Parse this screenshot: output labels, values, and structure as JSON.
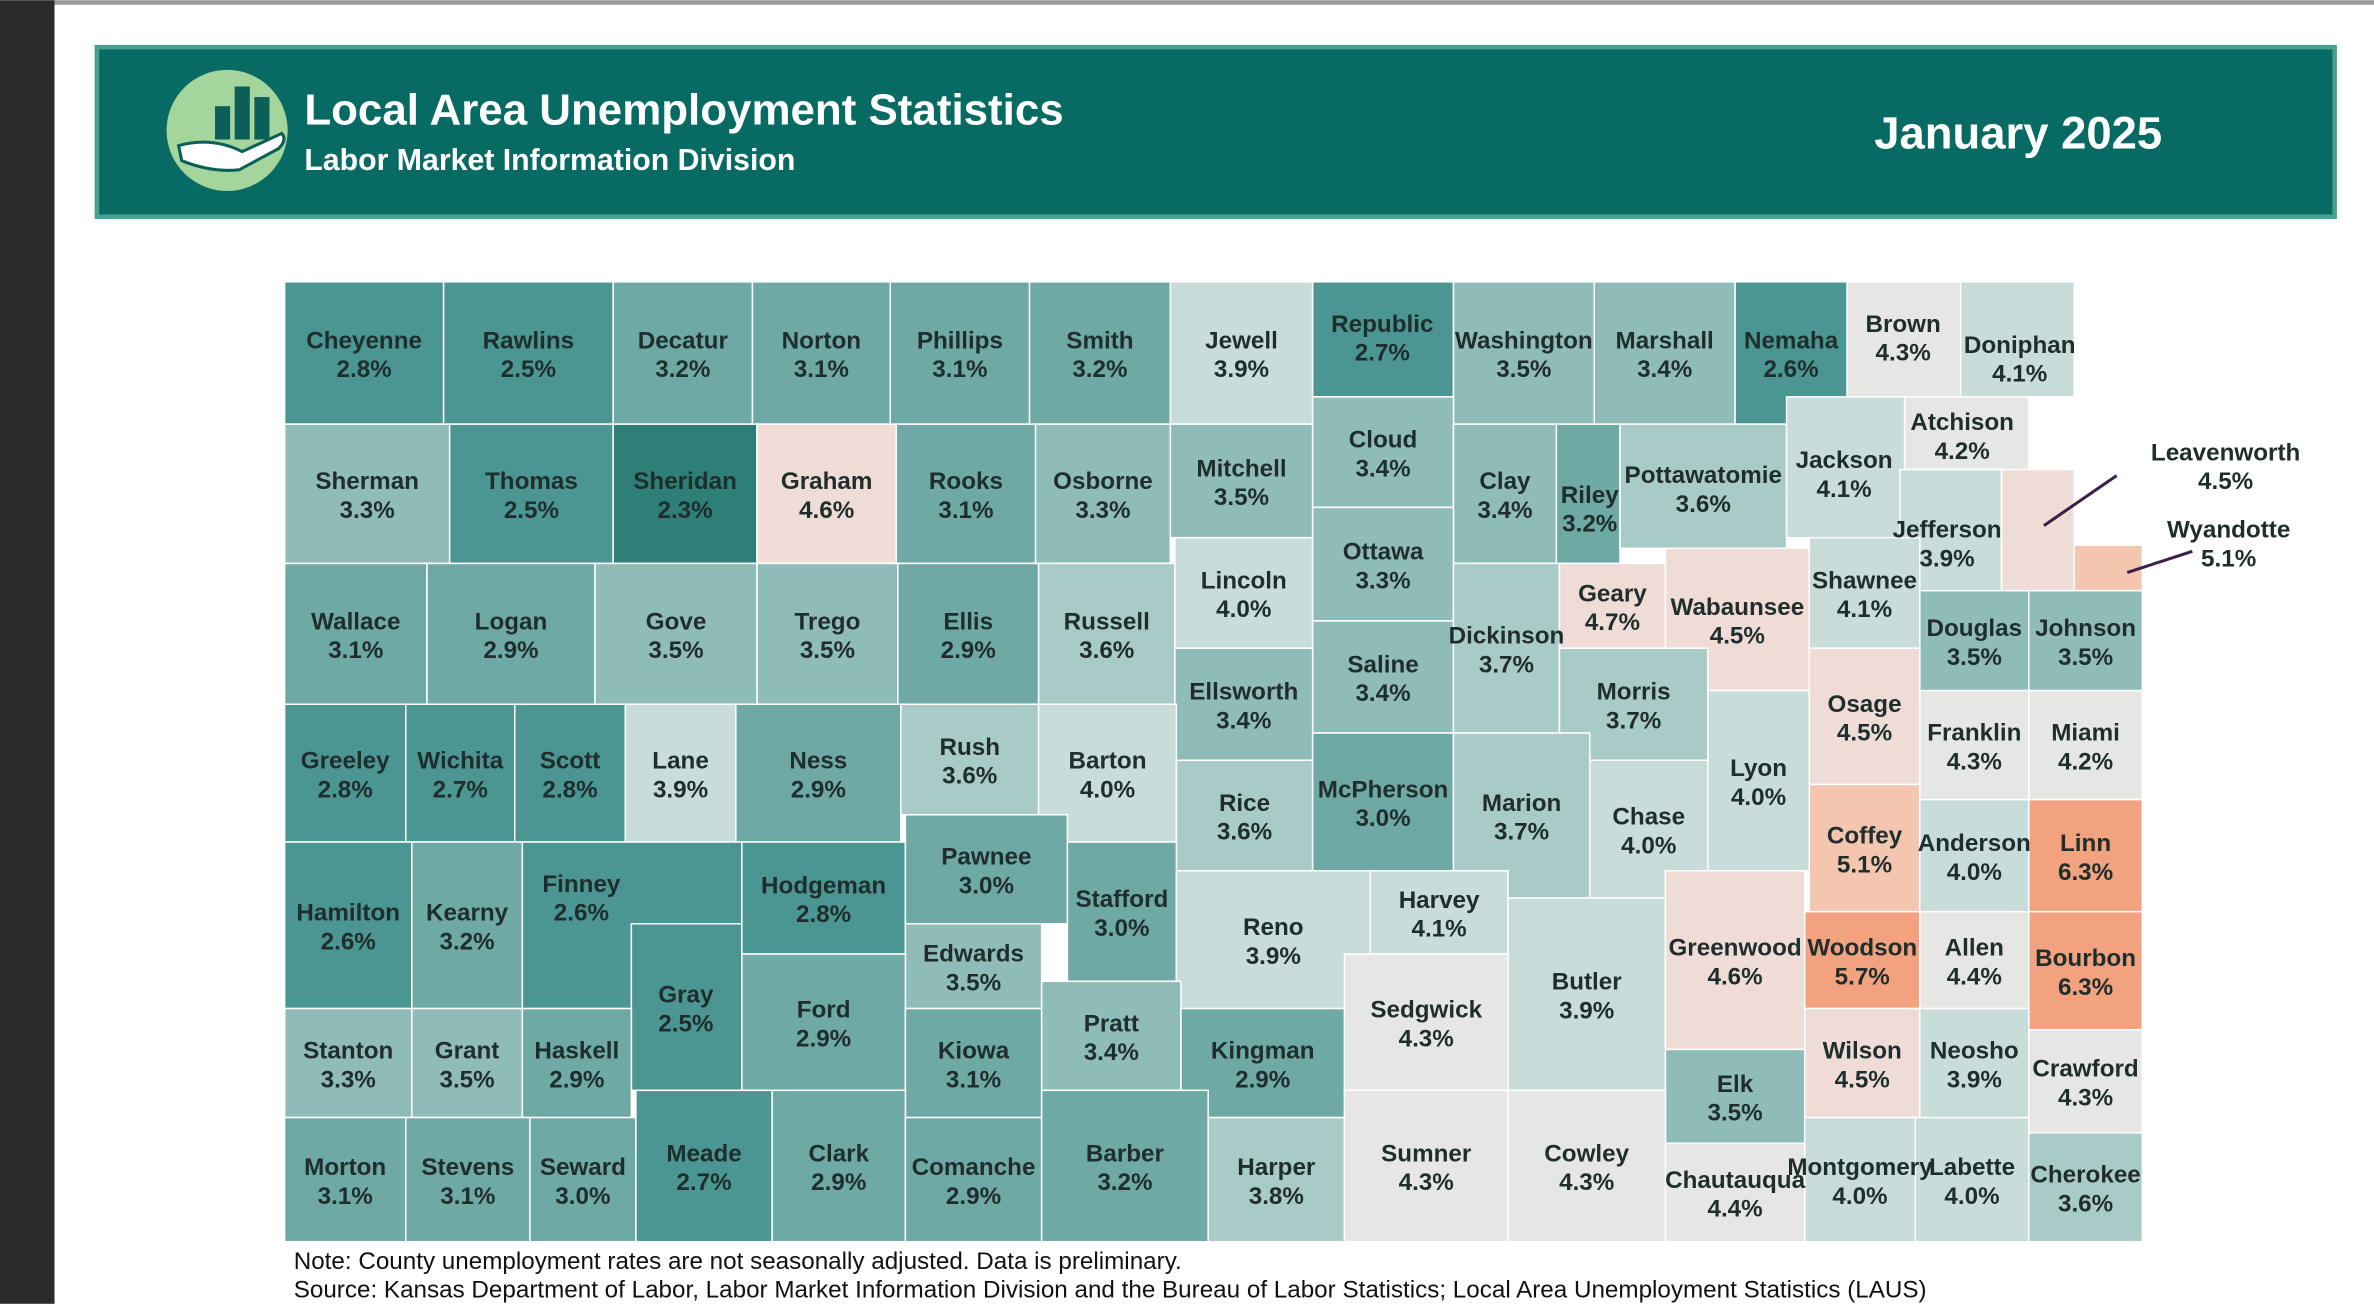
{
  "header": {
    "title": "Local Area Unemployment Statistics",
    "subtitle": "Labor Market Information Division",
    "date": "January 2025"
  },
  "counties": [
    {
      "name": "Cheyenne",
      "value": 2.8,
      "label": "2.8%"
    },
    {
      "name": "Rawlins",
      "value": 2.5,
      "label": "2.5%"
    },
    {
      "name": "Decatur",
      "value": 3.2,
      "label": "3.2%"
    },
    {
      "name": "Norton",
      "value": 3.1,
      "label": "3.1%"
    },
    {
      "name": "Phillips",
      "value": 3.1,
      "label": "3.1%"
    },
    {
      "name": "Smith",
      "value": 3.2,
      "label": "3.2%"
    },
    {
      "name": "Jewell",
      "value": 3.9,
      "label": "3.9%"
    },
    {
      "name": "Republic",
      "value": 2.7,
      "label": "2.7%"
    },
    {
      "name": "Washington",
      "value": 3.5,
      "label": "3.5%"
    },
    {
      "name": "Marshall",
      "value": 3.4,
      "label": "3.4%"
    },
    {
      "name": "Nemaha",
      "value": 2.6,
      "label": "2.6%"
    },
    {
      "name": "Brown",
      "value": 4.3,
      "label": "4.3%"
    },
    {
      "name": "Doniphan",
      "value": 4.1,
      "label": "4.1%"
    },
    {
      "name": "Sherman",
      "value": 3.3,
      "label": "3.3%"
    },
    {
      "name": "Thomas",
      "value": 2.5,
      "label": "2.5%"
    },
    {
      "name": "Sheridan",
      "value": 2.3,
      "label": "2.3%"
    },
    {
      "name": "Graham",
      "value": 4.6,
      "label": "4.6%"
    },
    {
      "name": "Rooks",
      "value": 3.1,
      "label": "3.1%"
    },
    {
      "name": "Osborne",
      "value": 3.3,
      "label": "3.3%"
    },
    {
      "name": "Mitchell",
      "value": 3.5,
      "label": "3.5%"
    },
    {
      "name": "Cloud",
      "value": 3.4,
      "label": "3.4%"
    },
    {
      "name": "Clay",
      "value": 3.4,
      "label": "3.4%"
    },
    {
      "name": "Riley",
      "value": 3.2,
      "label": "3.2%"
    },
    {
      "name": "Pottawatomie",
      "value": 3.6,
      "label": "3.6%"
    },
    {
      "name": "Jackson",
      "value": 4.1,
      "label": "4.1%"
    },
    {
      "name": "Atchison",
      "value": 4.2,
      "label": "4.2%"
    },
    {
      "name": "Jefferson",
      "value": 3.9,
      "label": "3.9%"
    },
    {
      "name": "Leavenworth",
      "value": 4.5,
      "label": "4.5%"
    },
    {
      "name": "Wyandotte",
      "value": 5.1,
      "label": "5.1%"
    },
    {
      "name": "Wallace",
      "value": 3.1,
      "label": "3.1%"
    },
    {
      "name": "Logan",
      "value": 2.9,
      "label": "2.9%"
    },
    {
      "name": "Gove",
      "value": 3.5,
      "label": "3.5%"
    },
    {
      "name": "Trego",
      "value": 3.5,
      "label": "3.5%"
    },
    {
      "name": "Ellis",
      "value": 2.9,
      "label": "2.9%"
    },
    {
      "name": "Russell",
      "value": 3.6,
      "label": "3.6%"
    },
    {
      "name": "Lincoln",
      "value": 4.0,
      "label": "4.0%"
    },
    {
      "name": "Ottawa",
      "value": 3.3,
      "label": "3.3%"
    },
    {
      "name": "Saline",
      "value": 3.4,
      "label": "3.4%"
    },
    {
      "name": "Dickinson",
      "value": 3.7,
      "label": "3.7%"
    },
    {
      "name": "Geary",
      "value": 4.7,
      "label": "4.7%"
    },
    {
      "name": "Wabaunsee",
      "value": 4.5,
      "label": "4.5%"
    },
    {
      "name": "Shawnee",
      "value": 4.1,
      "label": "4.1%"
    },
    {
      "name": "Douglas",
      "value": 3.5,
      "label": "3.5%"
    },
    {
      "name": "Johnson",
      "value": 3.5,
      "label": "3.5%"
    },
    {
      "name": "Ellsworth",
      "value": 3.4,
      "label": "3.4%"
    },
    {
      "name": "Morris",
      "value": 3.7,
      "label": "3.7%"
    },
    {
      "name": "Osage",
      "value": 4.5,
      "label": "4.5%"
    },
    {
      "name": "Franklin",
      "value": 4.3,
      "label": "4.3%"
    },
    {
      "name": "Miami",
      "value": 4.2,
      "label": "4.2%"
    },
    {
      "name": "Greeley",
      "value": 2.8,
      "label": "2.8%"
    },
    {
      "name": "Wichita",
      "value": 2.7,
      "label": "2.7%"
    },
    {
      "name": "Scott",
      "value": 2.8,
      "label": "2.8%"
    },
    {
      "name": "Lane",
      "value": 3.9,
      "label": "3.9%"
    },
    {
      "name": "Ness",
      "value": 2.9,
      "label": "2.9%"
    },
    {
      "name": "Rush",
      "value": 3.6,
      "label": "3.6%"
    },
    {
      "name": "Barton",
      "value": 4.0,
      "label": "4.0%"
    },
    {
      "name": "Rice",
      "value": 3.6,
      "label": "3.6%"
    },
    {
      "name": "McPherson",
      "value": 3.0,
      "label": "3.0%"
    },
    {
      "name": "Marion",
      "value": 3.7,
      "label": "3.7%"
    },
    {
      "name": "Chase",
      "value": 4.0,
      "label": "4.0%"
    },
    {
      "name": "Lyon",
      "value": 4.0,
      "label": "4.0%"
    },
    {
      "name": "Coffey",
      "value": 5.1,
      "label": "5.1%"
    },
    {
      "name": "Anderson",
      "value": 4.0,
      "label": "4.0%"
    },
    {
      "name": "Linn",
      "value": 6.3,
      "label": "6.3%"
    },
    {
      "name": "Hamilton",
      "value": 2.6,
      "label": "2.6%"
    },
    {
      "name": "Kearny",
      "value": 3.2,
      "label": "3.2%"
    },
    {
      "name": "Finney",
      "value": 2.6,
      "label": "2.6%"
    },
    {
      "name": "Gray",
      "value": 2.5,
      "label": "2.5%"
    },
    {
      "name": "Hodgeman",
      "value": 2.8,
      "label": "2.8%"
    },
    {
      "name": "Pawnee",
      "value": 3.0,
      "label": "3.0%"
    },
    {
      "name": "Stafford",
      "value": 3.0,
      "label": "3.0%"
    },
    {
      "name": "Reno",
      "value": 3.9,
      "label": "3.9%"
    },
    {
      "name": "Harvey",
      "value": 4.1,
      "label": "4.1%"
    },
    {
      "name": "Butler",
      "value": 3.9,
      "label": "3.9%"
    },
    {
      "name": "Greenwood",
      "value": 4.6,
      "label": "4.6%"
    },
    {
      "name": "Woodson",
      "value": 5.7,
      "label": "5.7%"
    },
    {
      "name": "Allen",
      "value": 4.4,
      "label": "4.4%"
    },
    {
      "name": "Bourbon",
      "value": 6.3,
      "label": "6.3%"
    },
    {
      "name": "Edwards",
      "value": 3.5,
      "label": "3.5%"
    },
    {
      "name": "Ford",
      "value": 2.9,
      "label": "2.9%"
    },
    {
      "name": "Kiowa",
      "value": 3.1,
      "label": "3.1%"
    },
    {
      "name": "Pratt",
      "value": 3.4,
      "label": "3.4%"
    },
    {
      "name": "Kingman",
      "value": 2.9,
      "label": "2.9%"
    },
    {
      "name": "Sedgwick",
      "value": 4.3,
      "label": "4.3%"
    },
    {
      "name": "Stanton",
      "value": 3.3,
      "label": "3.3%"
    },
    {
      "name": "Grant",
      "value": 3.5,
      "label": "3.5%"
    },
    {
      "name": "Haskell",
      "value": 2.9,
      "label": "2.9%"
    },
    {
      "name": "Wilson",
      "value": 4.5,
      "label": "4.5%"
    },
    {
      "name": "Neosho",
      "value": 3.9,
      "label": "3.9%"
    },
    {
      "name": "Crawford",
      "value": 4.3,
      "label": "4.3%"
    },
    {
      "name": "Elk",
      "value": 3.5,
      "label": "3.5%"
    },
    {
      "name": "Morton",
      "value": 3.1,
      "label": "3.1%"
    },
    {
      "name": "Stevens",
      "value": 3.1,
      "label": "3.1%"
    },
    {
      "name": "Seward",
      "value": 3.0,
      "label": "3.0%"
    },
    {
      "name": "Meade",
      "value": 2.7,
      "label": "2.7%"
    },
    {
      "name": "Clark",
      "value": 2.9,
      "label": "2.9%"
    },
    {
      "name": "Comanche",
      "value": 2.9,
      "label": "2.9%"
    },
    {
      "name": "Barber",
      "value": 3.2,
      "label": "3.2%"
    },
    {
      "name": "Harper",
      "value": 3.8,
      "label": "3.8%"
    },
    {
      "name": "Sumner",
      "value": 4.3,
      "label": "4.3%"
    },
    {
      "name": "Cowley",
      "value": 4.3,
      "label": "4.3%"
    },
    {
      "name": "Chautauqua",
      "value": 4.4,
      "label": "4.4%"
    },
    {
      "name": "Montgomery",
      "value": 4.0,
      "label": "4.0%"
    },
    {
      "name": "Labette",
      "value": 4.0,
      "label": "4.0%"
    },
    {
      "name": "Cherokee",
      "value": 3.6,
      "label": "3.6%"
    }
  ],
  "notes": [
    "Note: County unemployment rates are not seasonally adjusted. Data is preliminary.",
    "Source: Kansas Department of Labor, Labor Market Information Division and the Bureau of Labor Statistics; Local Area Unemployment Statistics (LAUS)"
  ]
}
